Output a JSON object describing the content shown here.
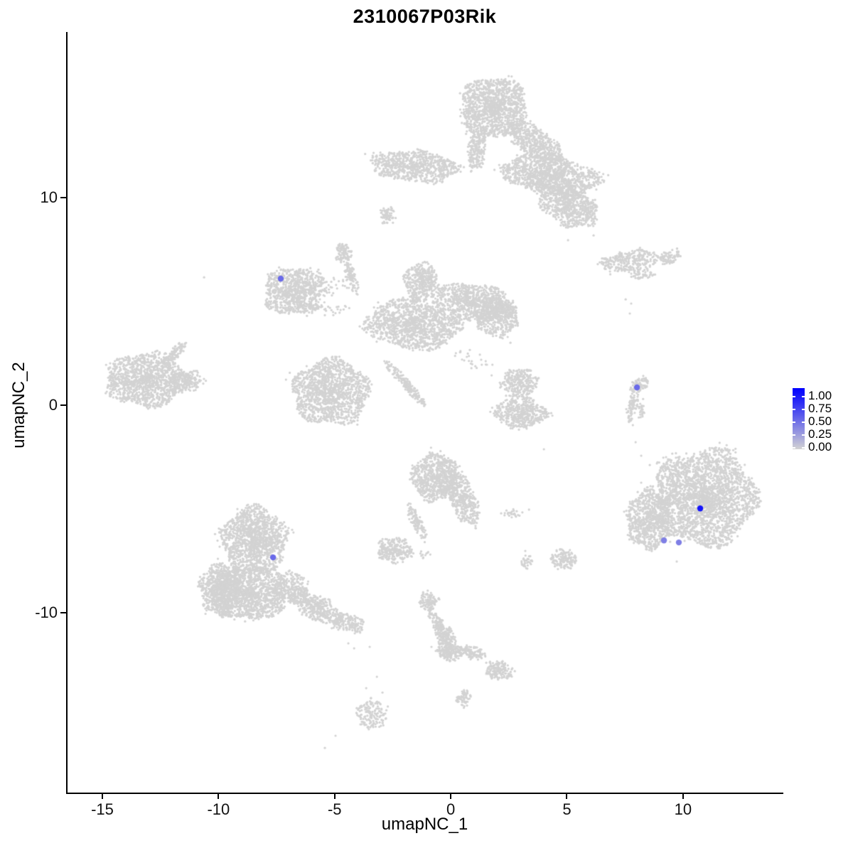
{
  "title": "2310067P03Rik",
  "axes": {
    "x": {
      "label": "umapNC_1",
      "ticks": [
        -15,
        -10,
        -5,
        0,
        5,
        10
      ],
      "range": [
        -16.5,
        14.32
      ]
    },
    "y": {
      "label": "umapNC_2",
      "ticks": [
        10,
        0,
        -10
      ],
      "range": [
        -18.66,
        17.98
      ]
    }
  },
  "legend": {
    "labels": [
      "1.00",
      "0.75",
      "0.50",
      "0.25",
      "0.00"
    ],
    "low_color": "#D3D3D3",
    "high_color": "#0000FF"
  },
  "colors": {
    "background": "#FFFFFF",
    "axis": "#000000",
    "point_grey": "#D3D3D3"
  },
  "chart_data": {
    "type": "scatter",
    "title": "2310067P03Rik",
    "xlabel": "umapNC_1",
    "ylabel": "umapNC_2",
    "xlim": [
      -16.5,
      14.32
    ],
    "ylim": [
      -18.66,
      17.98
    ],
    "x_ticks": [
      -15,
      -10,
      -5,
      0,
      5,
      10
    ],
    "y_ticks": [
      10,
      0,
      -10
    ],
    "grid": false,
    "legend_position": "right",
    "point_radius_px": 1.6,
    "highlight_radius_px": 4.2,
    "clusters_columns": [
      "name",
      "cx",
      "cy",
      "rx",
      "ry",
      "angle_deg",
      "density"
    ],
    "clusters": [
      [
        "top-head",
        1.87,
        14.32,
        1.44,
        1.47,
        0,
        0.95
      ],
      [
        "top-neck",
        1.1,
        12.26,
        0.86,
        0.41,
        95,
        0.9
      ],
      [
        "top-right-band",
        3.67,
        12.6,
        1.41,
        0.68,
        36,
        0.85
      ],
      [
        "top-right-mass",
        4.29,
        11.06,
        2.14,
        0.96,
        8,
        0.9
      ],
      [
        "top-left-wing",
        -1.53,
        11.51,
        1.96,
        0.75,
        4,
        0.8
      ],
      [
        "top-bottomright-lobe",
        5.05,
        9.62,
        1.38,
        0.92,
        25,
        0.85
      ],
      [
        "top-islet",
        -2.72,
        9.14,
        0.34,
        0.45,
        0,
        0.75
      ],
      [
        "ne-archipelago-main",
        7.77,
        6.95,
        1.35,
        0.51,
        -7,
        0.65
      ],
      [
        "ne-archipelago-east",
        9.43,
        7.16,
        0.49,
        0.34,
        -20,
        0.8
      ],
      [
        "ne-archipelago-south",
        8.2,
        6.3,
        0.61,
        0.24,
        5,
        0.5
      ],
      [
        "mid-knob",
        -4.62,
        7.29,
        0.34,
        0.51,
        0,
        0.9
      ],
      [
        "mid-strand",
        -4.29,
        6.16,
        0.73,
        0.27,
        72,
        0.8
      ],
      [
        "mid-left-blob",
        -6.73,
        5.51,
        1.35,
        1.13,
        -8,
        0.85
      ],
      [
        "mid-left-arm",
        -5.33,
        5.68,
        0.86,
        0.41,
        -15,
        0.2
      ],
      [
        "mid-squiggle",
        -5.63,
        4.73,
        1.38,
        0.41,
        8,
        0.15
      ],
      [
        "mid-finger",
        -1.25,
        5.92,
        0.73,
        0.96,
        0,
        0.85
      ],
      [
        "mid-right-upper",
        0.95,
        4.97,
        1.71,
        0.89,
        7,
        0.85
      ],
      [
        "mid-right-bulge",
        1.99,
        4.21,
        0.92,
        0.92,
        0,
        0.85
      ],
      [
        "mid-central",
        -1.65,
        3.87,
        2.08,
        1.16,
        5,
        0.8
      ],
      [
        "mid-lower-left",
        -5.14,
        0.65,
        1.68,
        1.58,
        0,
        0.8
      ],
      [
        "mid-sliver",
        -1.96,
        1.06,
        1.29,
        0.21,
        47,
        0.95
      ],
      [
        "mid-sliver-tail",
        -1.35,
        0.27,
        0.37,
        0.17,
        47,
        0.7
      ],
      [
        "mid-trail",
        0.86,
        2.23,
        1.22,
        0.48,
        25,
        0.07
      ],
      [
        "center-eight-upper",
        2.97,
        1.1,
        0.8,
        0.65,
        -10,
        0.85
      ],
      [
        "center-eight-lower",
        3.03,
        -0.34,
        1.1,
        0.79,
        5,
        0.85
      ],
      [
        "west-bird-main",
        -13.13,
        1.23,
        1.78,
        1.3,
        0,
        0.85
      ],
      [
        "west-bird-beak",
        -11.45,
        1.16,
        0.86,
        0.48,
        -5,
        0.7
      ],
      [
        "west-bird-antenna",
        -11.94,
        2.5,
        0.77,
        0.27,
        -40,
        0.7
      ],
      [
        "east-sliver-hook",
        8.14,
        0.99,
        0.43,
        0.31,
        -35,
        0.85
      ],
      [
        "east-sliver-main",
        7.84,
        0.0,
        0.8,
        0.24,
        102,
        0.85
      ],
      [
        "east-sliver-side",
        8.23,
        -0.17,
        0.49,
        0.14,
        95,
        0.5
      ],
      [
        "se-round-main",
        10.96,
        -4.45,
        2.2,
        2.33,
        0,
        0.95
      ],
      [
        "se-round-west-lobe",
        8.57,
        -5.51,
        0.98,
        1.44,
        5,
        0.85
      ],
      [
        "se-round-north-fringe",
        9.58,
        -2.91,
        0.86,
        0.96,
        0,
        0.08
      ],
      [
        "sw-top-lobe",
        -8.45,
        -6.51,
        1.41,
        1.64,
        0,
        0.9
      ],
      [
        "sw-west-lobe",
        -9.89,
        -8.87,
        0.92,
        1.27,
        0,
        0.9
      ],
      [
        "sw-main",
        -8.72,
        -9.04,
        1.71,
        1.3,
        0,
        0.9
      ],
      [
        "sw-bridge",
        -6.86,
        -8.84,
        0.8,
        0.82,
        0,
        0.55
      ],
      [
        "sw-tail",
        -5.72,
        -9.79,
        1.41,
        0.58,
        29,
        0.8
      ],
      [
        "sw-tail-end",
        -4.35,
        -10.48,
        0.67,
        0.41,
        18,
        0.8
      ],
      [
        "south-heart-main",
        -0.64,
        -3.49,
        1.04,
        1.16,
        0,
        0.9
      ],
      [
        "south-heart-right-lobe",
        0.49,
        -4.45,
        1.35,
        0.62,
        64,
        0.85
      ],
      [
        "south-heart-neck",
        -1.44,
        -5.65,
        0.86,
        0.27,
        64,
        0.8
      ],
      [
        "south-heart-left-blob",
        -2.42,
        -6.99,
        0.77,
        0.62,
        0,
        0.85
      ],
      [
        "south-heart-dots",
        -1.1,
        -7.16,
        0.28,
        0.24,
        0,
        0.25
      ],
      [
        "south-islet-east",
        2.69,
        -5.17,
        0.46,
        0.27,
        -5,
        0.3
      ],
      [
        "south-islet-small",
        3.27,
        -7.53,
        0.28,
        0.38,
        0,
        0.5
      ],
      [
        "south-triangle",
        4.84,
        -7.4,
        0.55,
        0.48,
        0,
        0.85
      ],
      [
        "snake-head",
        -0.95,
        -9.45,
        0.4,
        0.45,
        0,
        0.85
      ],
      [
        "snake-strand",
        -0.46,
        -10.72,
        1.04,
        0.31,
        63,
        0.85
      ],
      [
        "snake-bulge",
        -0.21,
        -11.51,
        0.4,
        0.75,
        10,
        0.85
      ],
      [
        "snake-elbow",
        0.03,
        -11.88,
        0.52,
        0.45,
        0,
        0.85
      ],
      [
        "snake-arm",
        0.89,
        -11.92,
        0.64,
        0.31,
        12,
        0.8
      ],
      [
        "snake-east-blob",
        2.08,
        -12.77,
        0.64,
        0.45,
        10,
        0.85
      ],
      [
        "snake-oval",
        0.55,
        -14.11,
        0.28,
        0.41,
        30,
        0.85
      ],
      [
        "far-south-blob",
        -3.4,
        -14.9,
        0.67,
        0.75,
        0,
        0.5
      ]
    ],
    "outliers": [
      [
        -10.62,
        6.16
      ],
      [
        5.05,
        7.95
      ],
      [
        6.15,
        8.18
      ],
      [
        -2.75,
        8.8
      ],
      [
        4.01,
        -2.12
      ],
      [
        -0.83,
        -11.64
      ],
      [
        7.84,
        -0.96
      ],
      [
        7.96,
        -1.78
      ],
      [
        8.2,
        -2.43
      ],
      [
        8.57,
        -2.88
      ],
      [
        9.27,
        -2.5
      ],
      [
        8.2,
        -3.73
      ],
      [
        8.05,
        -4.18
      ],
      [
        8.6,
        -3.9
      ],
      [
        -4.41,
        -11.47
      ],
      [
        -4.16,
        -11.71
      ],
      [
        -3.49,
        -11.64
      ],
      [
        9.73,
        -7.53
      ],
      [
        1.25,
        -12.12
      ],
      [
        2.17,
        -5.21
      ],
      [
        3.37,
        -5.03
      ],
      [
        3.21,
        -7.02
      ],
      [
        7.53,
        5.1
      ],
      [
        7.77,
        4.9
      ],
      [
        7.71,
        4.42
      ],
      [
        2.45,
        3.29
      ],
      [
        2.57,
        3.01
      ],
      [
        -3.18,
        -13.08
      ],
      [
        -3.64,
        -13.63
      ],
      [
        -2.94,
        -13.84
      ],
      [
        -4.96,
        -15.92
      ],
      [
        -5.42,
        -16.51
      ]
    ],
    "highlighted_points": [
      {
        "x": -7.32,
        "y": 6.1,
        "value": 0.5
      },
      {
        "x": 8.02,
        "y": 0.86,
        "value": 0.5
      },
      {
        "x": 10.74,
        "y": -4.97,
        "value": 0.9
      },
      {
        "x": 9.18,
        "y": -6.51,
        "value": 0.4
      },
      {
        "x": 9.82,
        "y": -6.61,
        "value": 0.4
      },
      {
        "x": -7.65,
        "y": -7.33,
        "value": 0.5
      }
    ]
  }
}
